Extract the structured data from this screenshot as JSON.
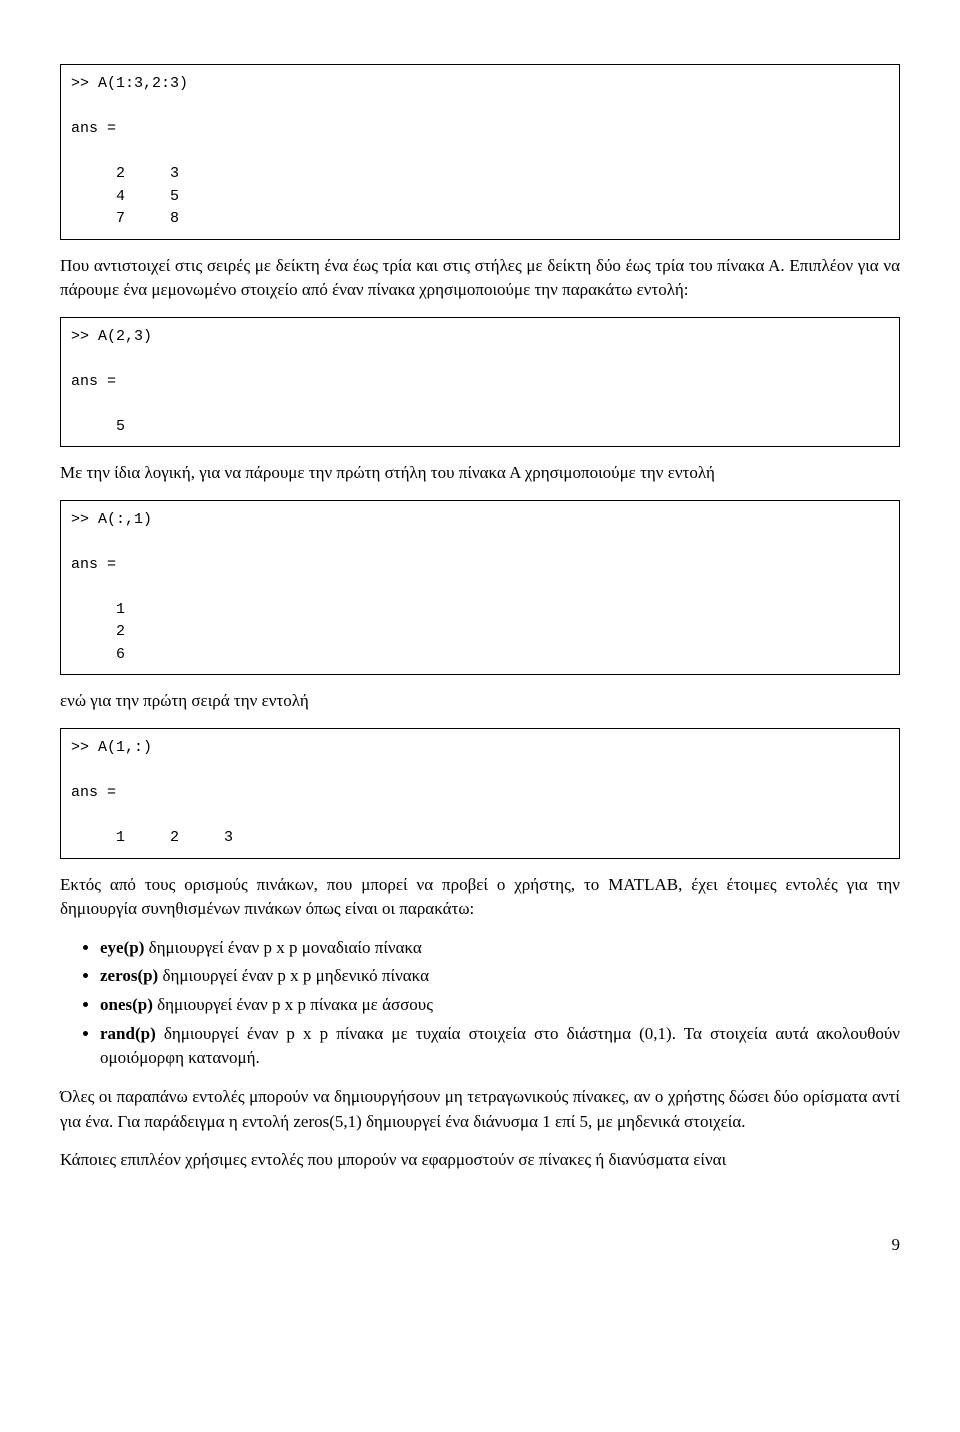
{
  "code1": ">> A(1:3,2:3)\n\nans =\n\n     2     3\n     4     5\n     7     8",
  "para1": "Που αντιστοιχεί στις σειρές με δείκτη ένα έως τρία και στις στήλες με δείκτη δύο έως τρία του πίνακα Α. Επιπλέον για να πάρουμε ένα μεμονωμένο στοιχείο από έναν πίνακα χρησιμοποιούμε την παρακάτω εντολή:",
  "code2": ">> A(2,3)\n\nans =\n\n     5",
  "para2": "Με την ίδια λογική, για να πάρουμε την πρώτη στήλη του πίνακα Α χρησιμοποιούμε την εντολή",
  "code3": ">> A(:,1)\n\nans =\n\n     1\n     2\n     6",
  "para3": "ενώ για την πρώτη σειρά την εντολή",
  "code4": ">> A(1,:)\n\nans =\n\n     1     2     3",
  "para4": "Εκτός από τους ορισμούς πινάκων, που μπορεί να προβεί ο χρήστης, το MATLAB, έχει έτοιμες εντολές για την δημιουργία συνηθισμένων πινάκων όπως είναι οι παρακάτω:",
  "bul": {
    "b1a": "eye(p)",
    "b1b": " δημιουργεί έναν p x p μοναδιαίο πίνακα",
    "b2a": "zeros(p)",
    "b2b": " δημιουργεί έναν p x p μηδενικό πίνακα",
    "b3a": "ones(p)",
    "b3b": " δημιουργεί έναν p x p πίνακα με άσσους",
    "b4a": "rand(p)",
    "b4b": " δημιουργεί έναν p x p πίνακα με τυχαία στοιχεία στο διάστημα (0,1). Τα στοιχεία αυτά ακολουθούν ομοιόμορφη κατανομή."
  },
  "para5": "Όλες οι παραπάνω εντολές μπορούν να δημιουργήσουν μη τετραγωνικούς πίνακες, αν ο χρήστης δώσει δύο ορίσματα αντί για ένα. Για παράδειγμα η εντολή zeros(5,1) δημιουργεί ένα διάνυσμα 1 επί 5, με μηδενικά στοιχεία.",
  "para6": "Κάποιες επιπλέον χρήσιμες εντολές που μπορούν να εφαρμοστούν σε πίνακες ή διανύσματα είναι",
  "pagenum": "9"
}
